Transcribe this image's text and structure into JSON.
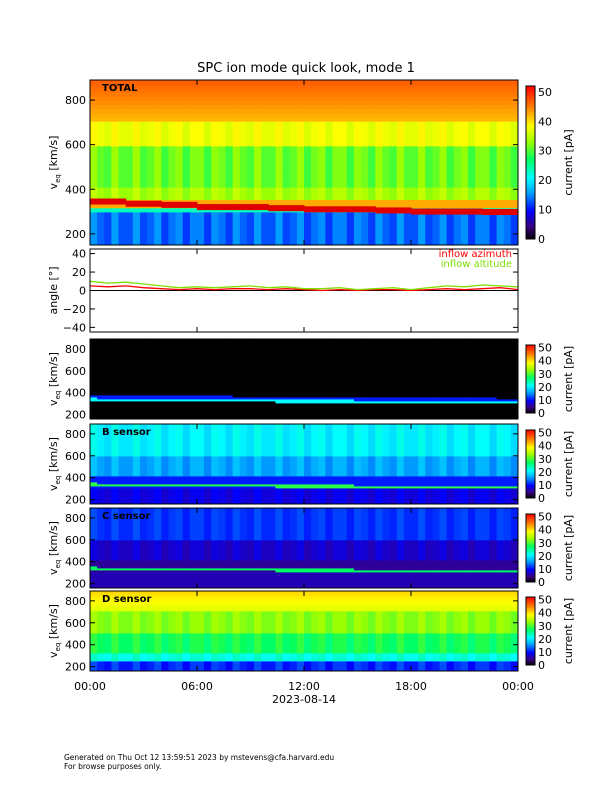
{
  "title": "SPC ion mode quick look, mode 1",
  "footer": {
    "line1": "Generated on Thu Oct 12 13:59:51 2023 by mstevens@cfa.harvard.edu",
    "line2": "For browse purposes only."
  },
  "x_axis": {
    "ticks": [
      "00:00",
      "06:00",
      "12:00",
      "18:00",
      "00:00"
    ],
    "date": "2023-08-14"
  },
  "colorbar_label": "current [pA]",
  "chart_data": [
    {
      "type": "heatmap",
      "panel": "TOTAL",
      "label": "TOTAL",
      "ylabel": "v_eq [km/s]",
      "ylim": [
        150,
        890
      ],
      "yticks": [
        "800",
        "600",
        "400",
        "200"
      ],
      "color_range": [
        0,
        52
      ],
      "color_ticks": [
        "50",
        "40",
        "30",
        "20",
        "10",
        "0"
      ],
      "bulk_speed_kms": [
        345,
        335,
        330,
        320,
        320,
        315,
        310,
        310,
        305,
        300,
        300,
        298
      ]
    },
    {
      "type": "line",
      "panel": "angle",
      "ylabel": "angle [°]",
      "ylim": [
        -45,
        45
      ],
      "yticks": [
        "40",
        "20",
        "0",
        "−20",
        "−40"
      ],
      "legend": "top-right",
      "series": [
        {
          "name": "inflow azimuth",
          "color": "#ff0000",
          "values": [
            5,
            4,
            5,
            3,
            2,
            1,
            2,
            1,
            2,
            2,
            1,
            2,
            1,
            0,
            1,
            0,
            1,
            1,
            0,
            1,
            2,
            1,
            2,
            3,
            1
          ]
        },
        {
          "name": "inflow altitude",
          "color": "#7fdf00",
          "values": [
            10,
            8,
            9,
            7,
            5,
            3,
            4,
            3,
            4,
            5,
            3,
            4,
            2,
            2,
            3,
            1,
            2,
            3,
            1,
            3,
            5,
            4,
            6,
            5,
            4
          ]
        }
      ]
    },
    {
      "type": "heatmap",
      "panel": "A",
      "label": "",
      "ylabel": "v_eq [km/s]",
      "ylim": [
        160,
        890
      ],
      "yticks": [
        "800",
        "600",
        "400",
        "200"
      ],
      "color_range": [
        0,
        52
      ],
      "color_ticks": [
        "50",
        "40",
        "30",
        "20",
        "10",
        "0"
      ]
    },
    {
      "type": "heatmap",
      "panel": "B",
      "label": "B sensor",
      "ylabel": "v_eq [km/s]",
      "ylim": [
        160,
        890
      ],
      "yticks": [
        "800",
        "600",
        "400",
        "200"
      ],
      "color_range": [
        0,
        52
      ],
      "color_ticks": [
        "50",
        "40",
        "30",
        "20",
        "10",
        "0"
      ]
    },
    {
      "type": "heatmap",
      "panel": "C",
      "label": "C sensor",
      "ylabel": "v_eq [km/s]",
      "ylim": [
        160,
        890
      ],
      "yticks": [
        "800",
        "600",
        "400",
        "200"
      ],
      "color_range": [
        0,
        52
      ],
      "color_ticks": [
        "50",
        "40",
        "30",
        "20",
        "10",
        "0"
      ]
    },
    {
      "type": "heatmap",
      "panel": "D",
      "label": "D sensor",
      "ylabel": "v_eq [km/s]",
      "ylim": [
        160,
        890
      ],
      "yticks": [
        "800",
        "600",
        "400",
        "200"
      ],
      "color_range": [
        0,
        52
      ],
      "color_ticks": [
        "50",
        "40",
        "30",
        "20",
        "10",
        "0"
      ]
    }
  ]
}
